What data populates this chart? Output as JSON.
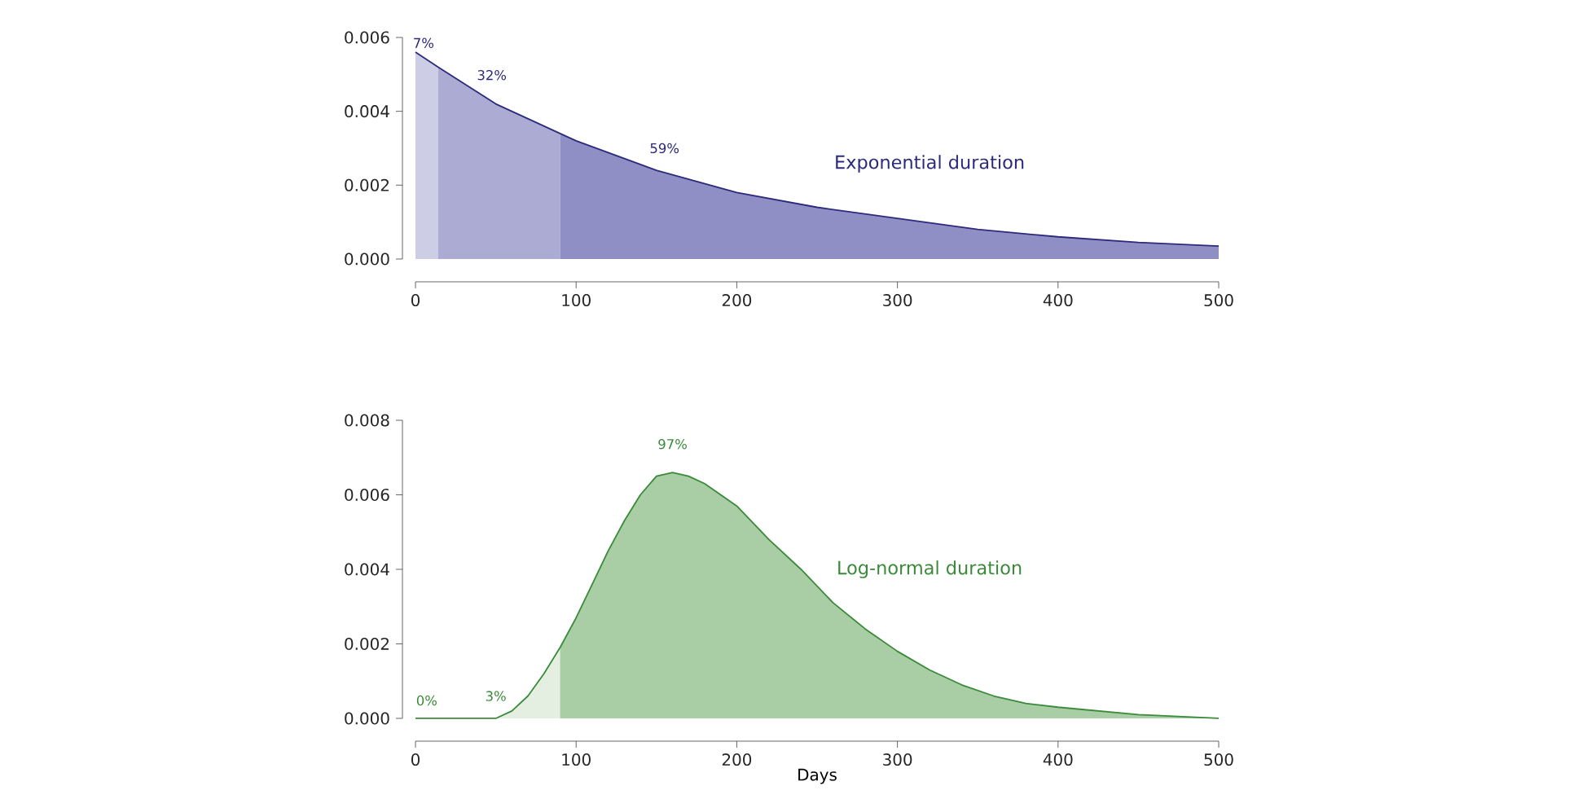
{
  "chart_data": [
    {
      "type": "area",
      "xlim": [
        0,
        500
      ],
      "ylim": [
        0,
        0.006
      ],
      "xticks": [
        0,
        100,
        200,
        300,
        400,
        500
      ],
      "yticks": [
        {
          "value": 0,
          "label": "0.000"
        },
        {
          "value": 0.002,
          "label": "0.002"
        },
        {
          "value": 0.004,
          "label": "0.004"
        },
        {
          "value": 0.006,
          "label": "0.006"
        }
      ],
      "series": [
        {
          "color": "#cdcde5",
          "x": [
            0,
            14
          ],
          "values": [
            0.0056,
            0.0052
          ]
        },
        {
          "color": "#ababd3",
          "x": [
            14,
            50,
            90
          ],
          "values": [
            0.0052,
            0.0042,
            0.0034
          ]
        },
        {
          "color": "#8f8fc5",
          "x": [
            90,
            100,
            150,
            200,
            250,
            300,
            350,
            400,
            450,
            500
          ],
          "values": [
            0.0034,
            0.0032,
            0.0024,
            0.0018,
            0.0014,
            0.0011,
            0.0008,
            0.0006,
            0.00045,
            0.00035
          ]
        },
        {
          "type": "line",
          "color": "#2c2a7c",
          "x": [
            0,
            14,
            50,
            90,
            100,
            150,
            200,
            250,
            300,
            350,
            400,
            450,
            500
          ],
          "values": [
            0.0056,
            0.0052,
            0.0042,
            0.0034,
            0.0032,
            0.0024,
            0.0018,
            0.0014,
            0.0011,
            0.0008,
            0.0006,
            0.00045,
            0.00035
          ]
        }
      ],
      "annotations": [
        "7%",
        "32%",
        "59%",
        "Exponential duration"
      ]
    },
    {
      "type": "area",
      "xlim": [
        0,
        500
      ],
      "ylim": [
        0,
        0.008
      ],
      "xticks": [
        0,
        100,
        200,
        300,
        400,
        500
      ],
      "xlabel": "Days",
      "yticks": [
        {
          "value": 0,
          "label": "0.000"
        },
        {
          "value": 0.002,
          "label": "0.002"
        },
        {
          "value": 0.004,
          "label": "0.004"
        },
        {
          "value": 0.006,
          "label": "0.006"
        },
        {
          "value": 0.008,
          "label": "0.008"
        }
      ],
      "series": [
        {
          "color": "#e4efe2",
          "x": [
            0,
            50,
            60,
            70,
            80,
            90
          ],
          "values": [
            0,
            0,
            0.0002,
            0.0006,
            0.0012,
            0.0019
          ]
        },
        {
          "color": "#a9cda5",
          "x": [
            90,
            100,
            110,
            120,
            130,
            140,
            150,
            160,
            170,
            180,
            200,
            220,
            240,
            260,
            280,
            300,
            320,
            340,
            360,
            380,
            400,
            450,
            500
          ],
          "values": [
            0.0019,
            0.0027,
            0.0036,
            0.0045,
            0.0053,
            0.006,
            0.0065,
            0.0066,
            0.0065,
            0.0063,
            0.0057,
            0.0048,
            0.004,
            0.0031,
            0.0024,
            0.0018,
            0.0013,
            0.0009,
            0.0006,
            0.0004,
            0.0003,
            0.0001,
            0
          ]
        },
        {
          "type": "line",
          "color": "#3a8a3a",
          "x": [
            0,
            50,
            60,
            70,
            80,
            90,
            100,
            110,
            120,
            130,
            140,
            150,
            160,
            170,
            180,
            200,
            220,
            240,
            260,
            280,
            300,
            320,
            340,
            360,
            380,
            400,
            450,
            500
          ],
          "values": [
            0,
            0,
            0.0002,
            0.0006,
            0.0012,
            0.0019,
            0.0027,
            0.0036,
            0.0045,
            0.0053,
            0.006,
            0.0065,
            0.0066,
            0.0065,
            0.0063,
            0.0057,
            0.0048,
            0.004,
            0.0031,
            0.0024,
            0.0018,
            0.0013,
            0.0009,
            0.0006,
            0.0004,
            0.0003,
            0.0001,
            0
          ]
        }
      ],
      "annotations": [
        "0%",
        "3%",
        "97%",
        "Log-normal duration"
      ]
    }
  ]
}
